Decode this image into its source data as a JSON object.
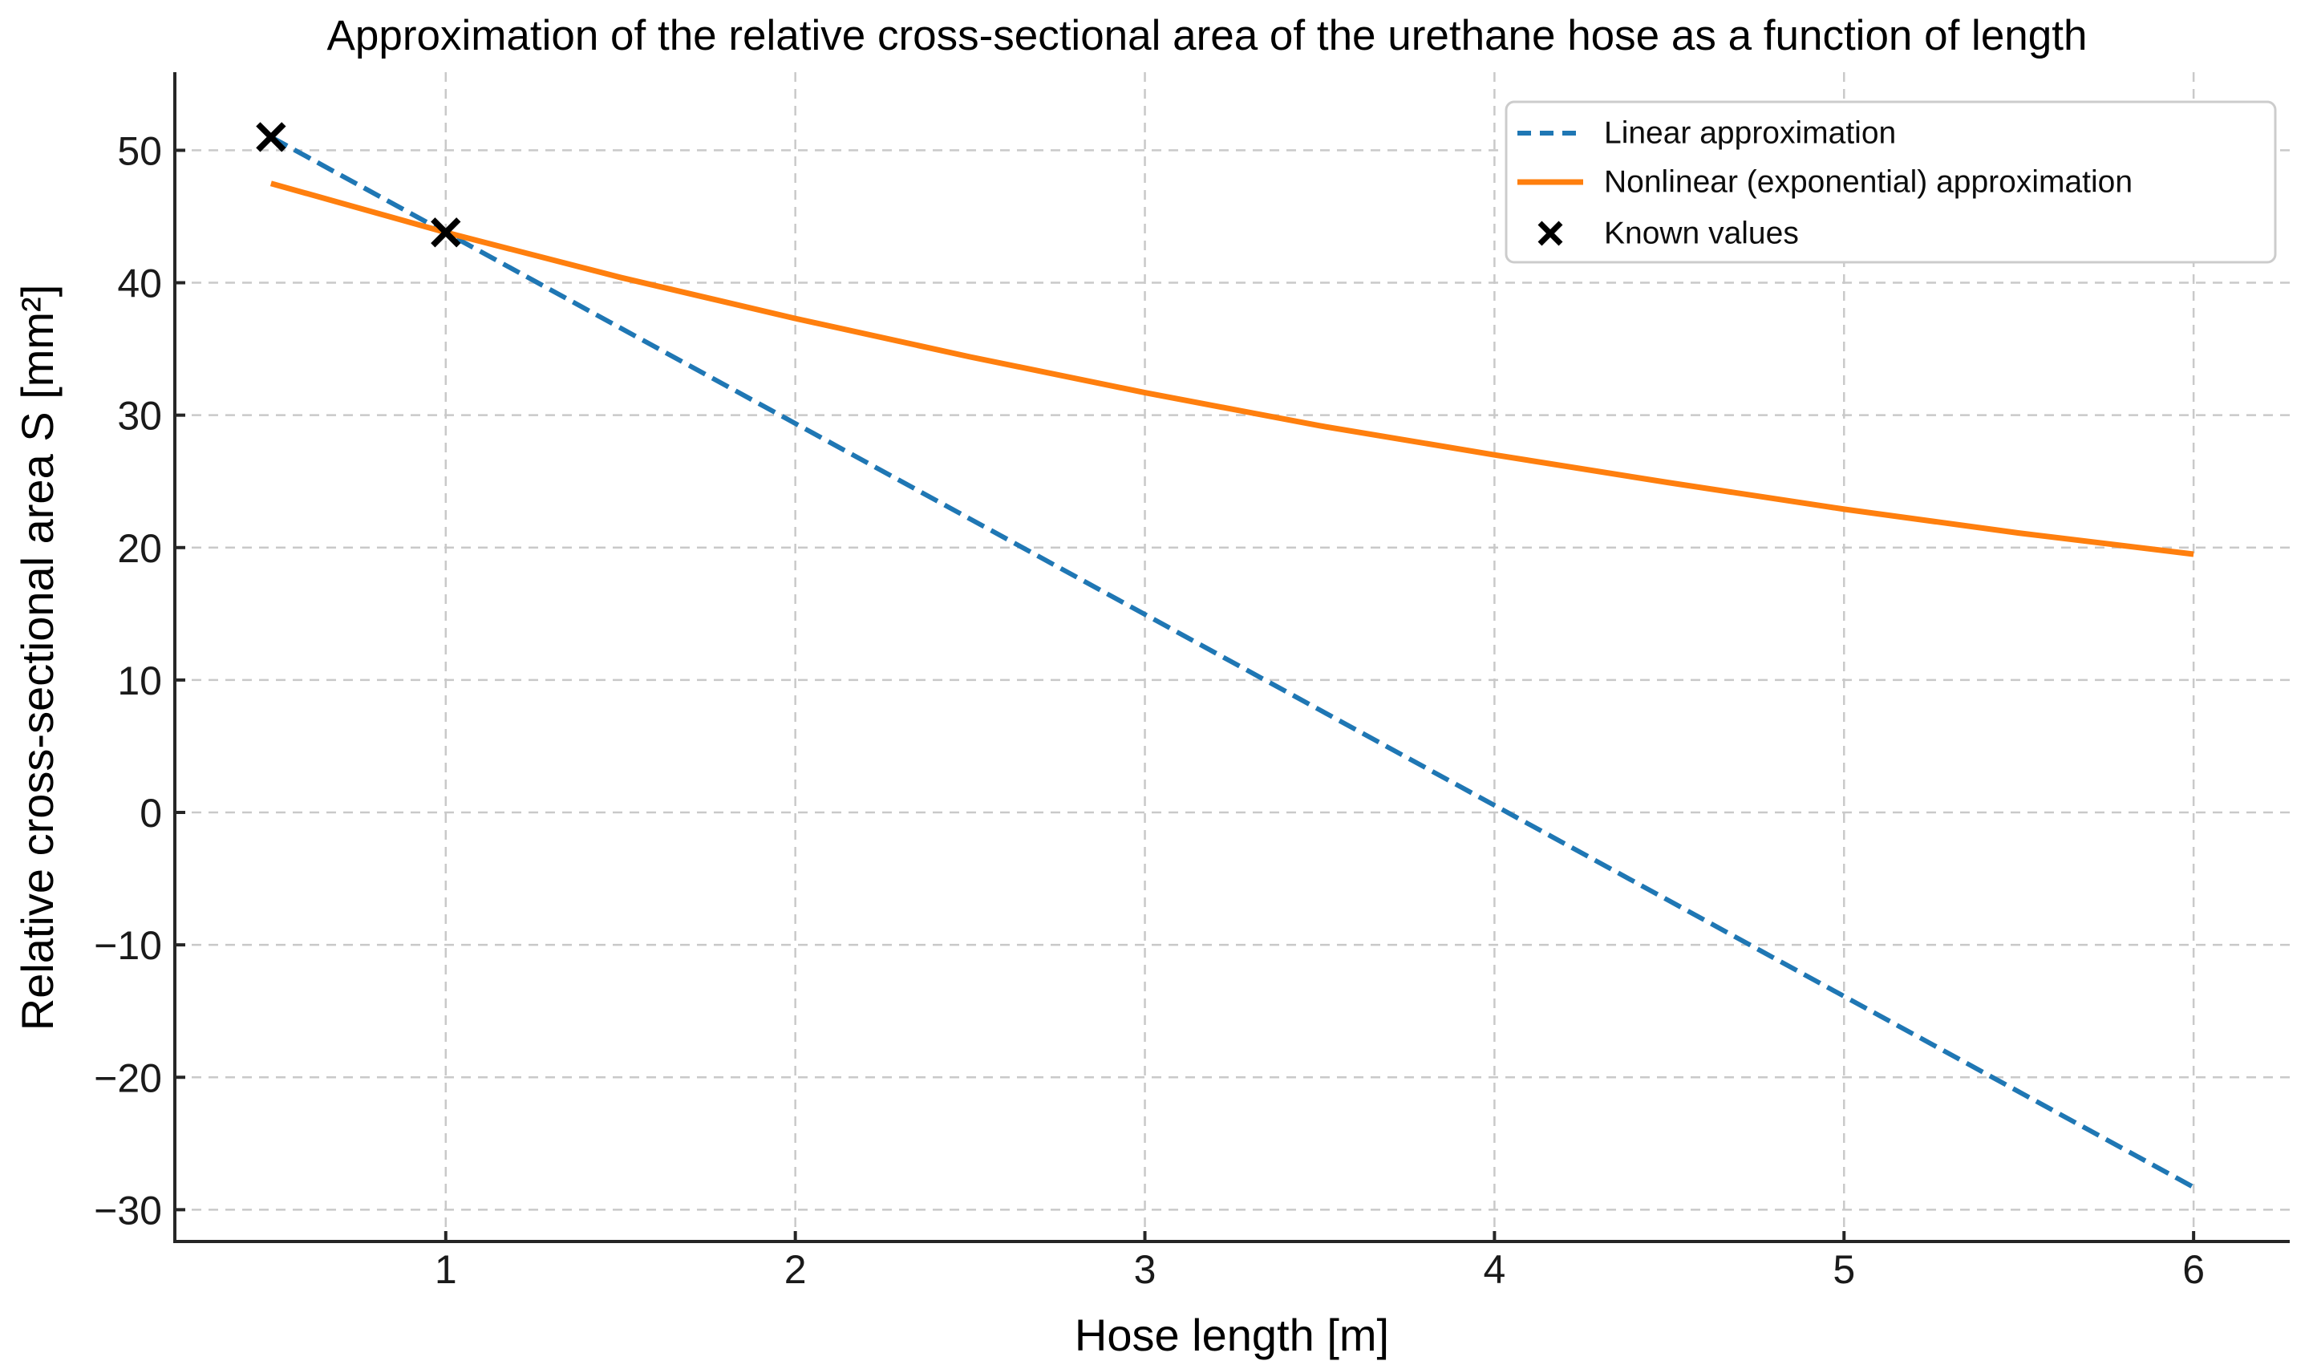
{
  "page": {
    "background": "#ffffff"
  },
  "chart_data": {
    "type": "line",
    "title": "Approximation of the relative cross-sectional area of the urethane hose as a function of length",
    "xlabel": "Hose length [m]",
    "ylabel": "Relative cross-sectional area S [mm²]",
    "xlim": [
      0.225,
      6.275
    ],
    "ylim": [
      -32.4,
      55.9
    ],
    "x_tick_values": [
      1,
      2,
      3,
      4,
      5,
      6
    ],
    "x_tick_labels": [
      "1",
      "2",
      "3",
      "4",
      "5",
      "6"
    ],
    "y_tick_values": [
      50,
      40,
      30,
      20,
      10,
      0,
      -10,
      -20,
      -30
    ],
    "y_tick_labels": [
      "50",
      "40",
      "30",
      "20",
      "10",
      "0",
      "−10",
      "−20",
      "−30"
    ],
    "grid": true,
    "legend": {
      "position": "upper right"
    },
    "series": [
      {
        "name": "Linear approximation",
        "kind": "line",
        "linestyle": "dashed",
        "color": "#1f77b4",
        "points": [
          [
            0.5,
            51.0
          ],
          [
            6.0,
            -28.3
          ]
        ]
      },
      {
        "name": "Nonlinear (exponential) approximation",
        "kind": "line",
        "linestyle": "solid",
        "color": "#ff7f0e",
        "points": [
          [
            0.5,
            47.5
          ],
          [
            1.0,
            43.8
          ],
          [
            1.5,
            40.4
          ],
          [
            2.0,
            37.3
          ],
          [
            2.5,
            34.4
          ],
          [
            3.0,
            31.7
          ],
          [
            3.5,
            29.2
          ],
          [
            4.0,
            27.0
          ],
          [
            4.5,
            24.9
          ],
          [
            5.0,
            22.9
          ],
          [
            5.5,
            21.1
          ],
          [
            6.0,
            19.5
          ]
        ]
      },
      {
        "name": "Known values",
        "kind": "scatter",
        "marker": "x",
        "color": "#000000",
        "points": [
          [
            0.5,
            51.0
          ],
          [
            1.0,
            43.8
          ]
        ]
      }
    ]
  },
  "colors": {
    "grid": "#c9c9c9",
    "spine": "#262626",
    "legend_border": "#cccccc",
    "legend_background": "#ffffff"
  }
}
